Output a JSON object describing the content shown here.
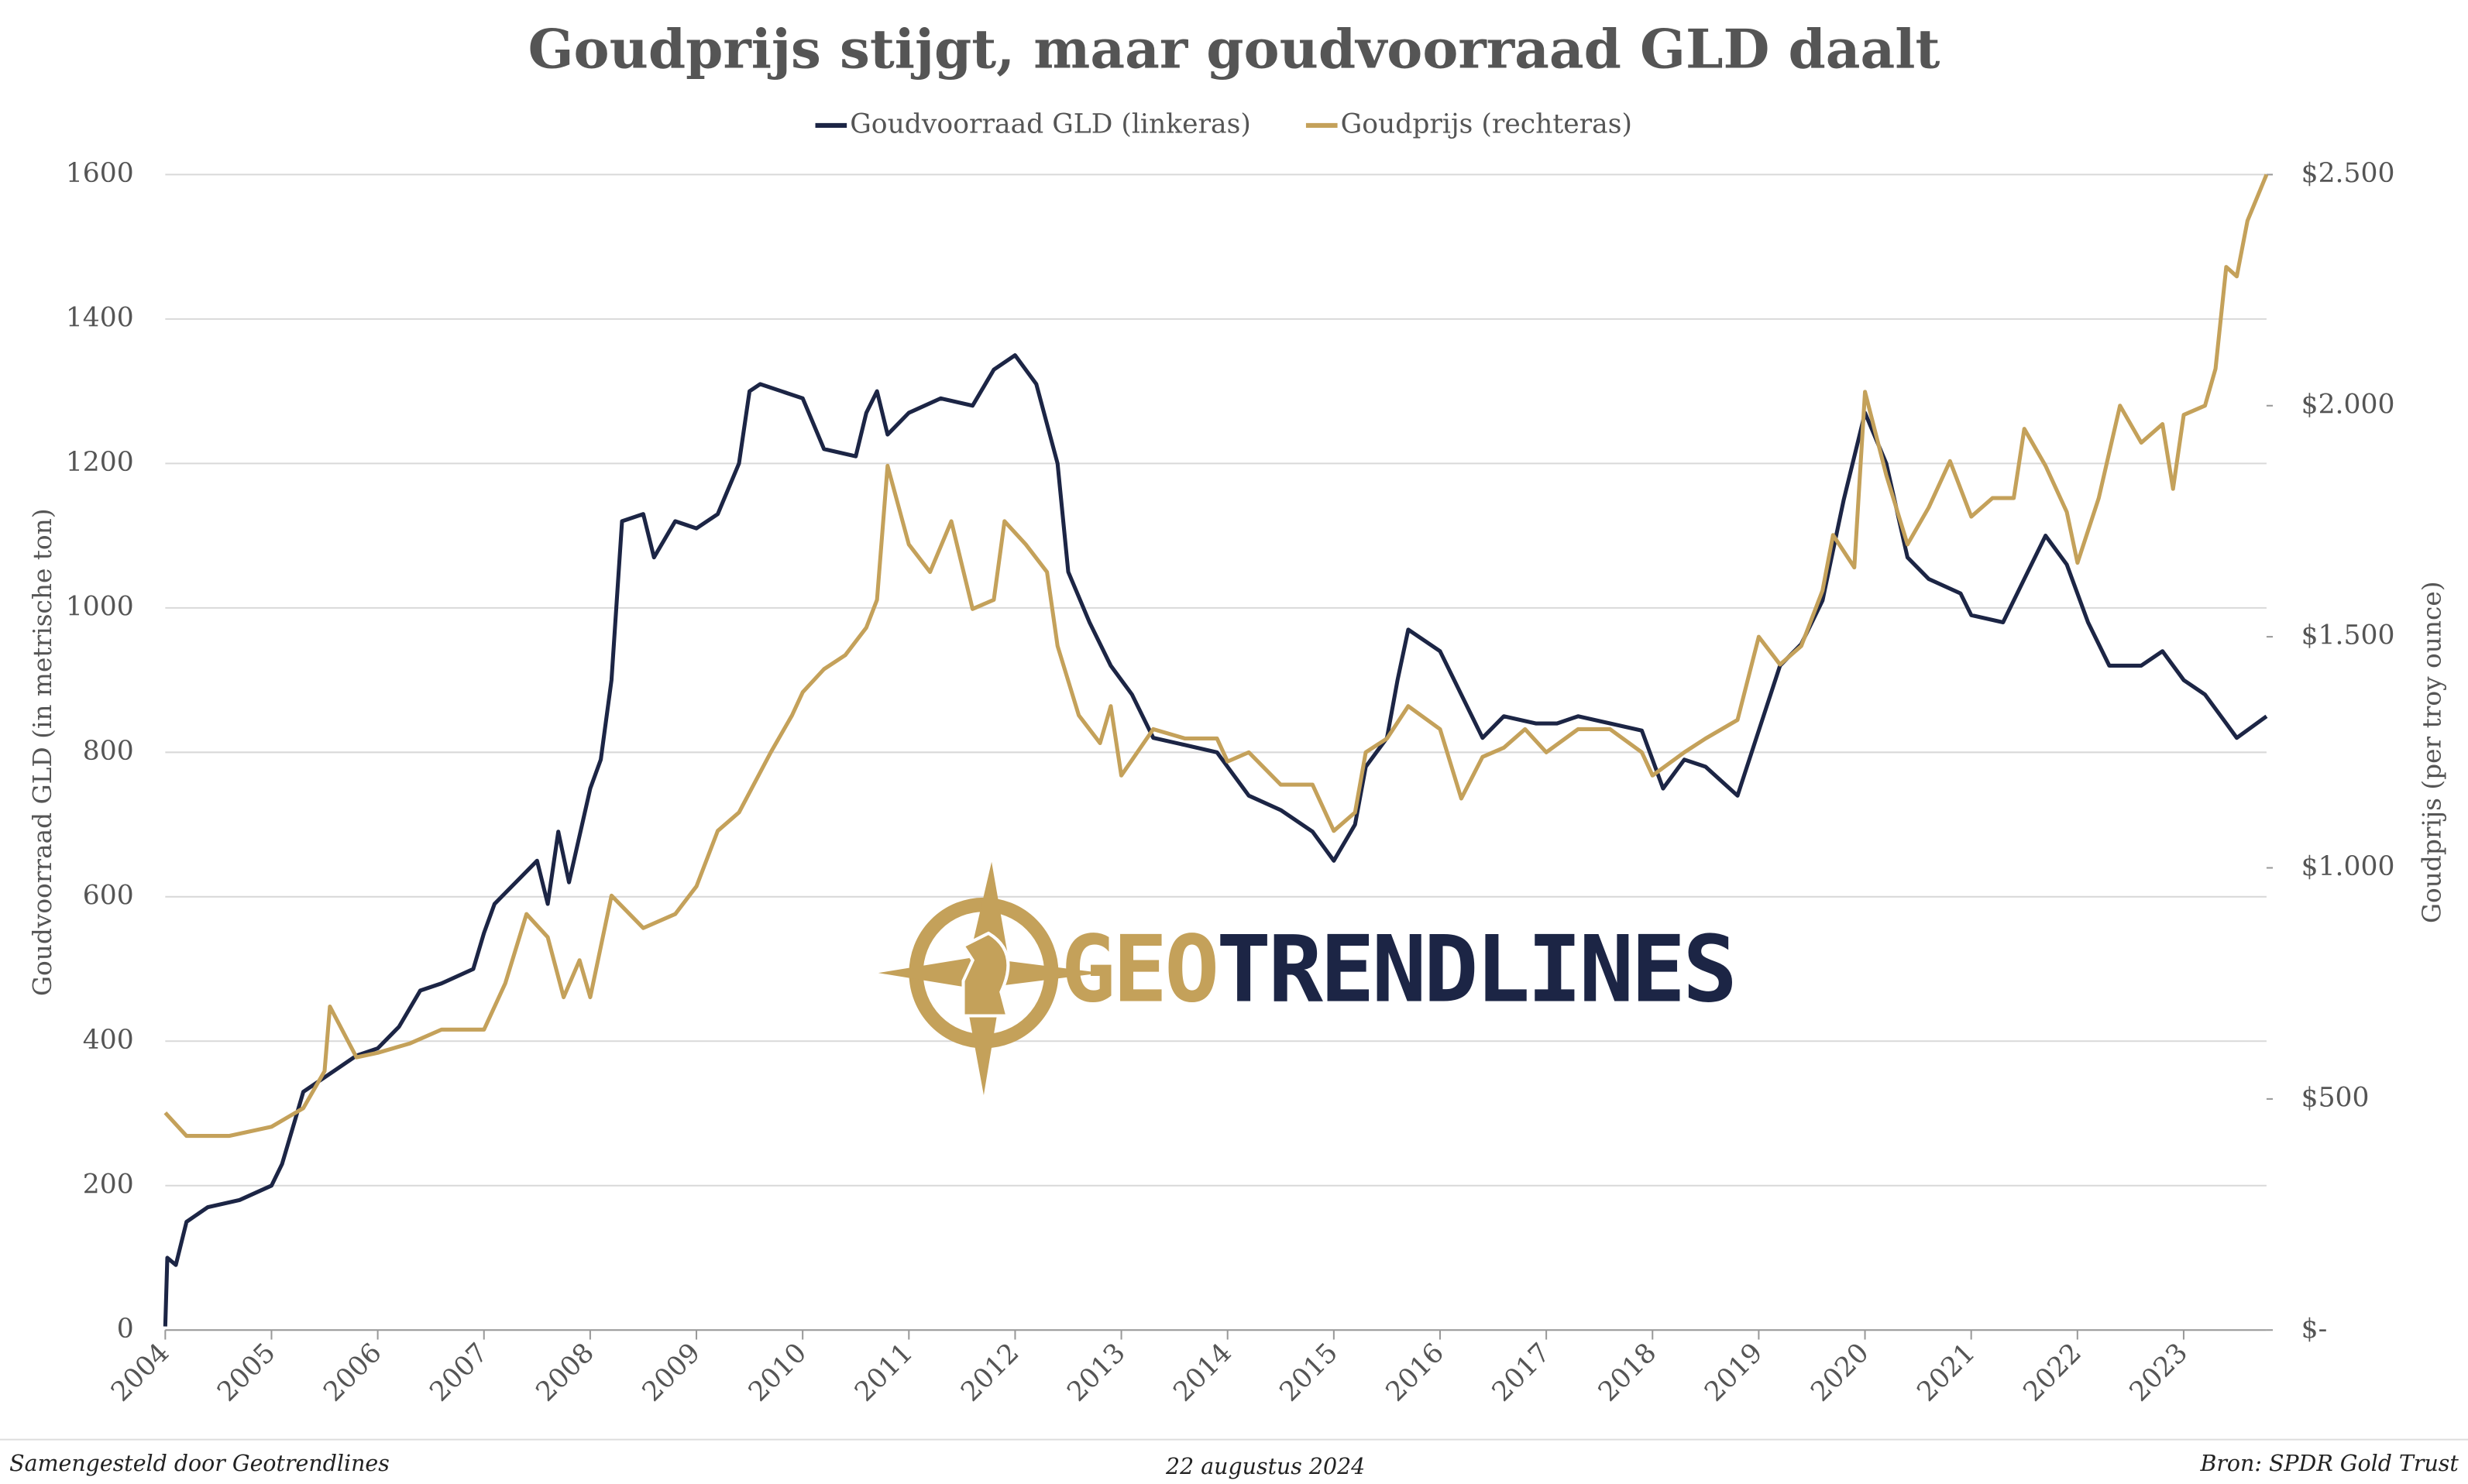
{
  "chart_data": {
    "type": "line",
    "title": "Goudprijs stijgt, maar goudvoorraad GLD daalt",
    "y_label": "Goudvoorraad GLD (in metrische ton)",
    "y2_label": "Goudprijs (per troy ounce)",
    "xlim": [
      2004,
      2023.78
    ],
    "xticks": [
      2004,
      2005,
      2006,
      2007,
      2008,
      2009,
      2010,
      2011,
      2012,
      2013,
      2014,
      2015,
      2016,
      2017,
      2018,
      2019,
      2020,
      2021,
      2022,
      2023
    ],
    "ylim": [
      0,
      1600
    ],
    "yticks": [
      0,
      200,
      400,
      600,
      800,
      1000,
      1200,
      1400,
      1600
    ],
    "y2lim": [
      0,
      2500
    ],
    "y2ticks": [
      {
        "value": 0,
        "label": "$-"
      },
      {
        "value": 500,
        "label": "$500"
      },
      {
        "value": 1000,
        "label": "$1.000"
      },
      {
        "value": 1500,
        "label": "$1.500"
      },
      {
        "value": 2000,
        "label": "$2.000"
      },
      {
        "value": 2500,
        "label": "$2.500"
      }
    ],
    "grid": true,
    "legend": "top",
    "series": [
      {
        "name": "Goudvoorraad GLD (linkeras)",
        "color": "#1c2545",
        "x": [
          2004.0,
          2004.02,
          2004.1,
          2004.2,
          2004.4,
          2004.7,
          2005.0,
          2005.1,
          2005.2,
          2005.3,
          2005.6,
          2005.8,
          2006.0,
          2006.2,
          2006.4,
          2006.6,
          2006.9,
          2007.0,
          2007.1,
          2007.3,
          2007.5,
          2007.6,
          2007.7,
          2007.8,
          2008.0,
          2008.1,
          2008.2,
          2008.3,
          2008.5,
          2008.6,
          2008.8,
          2009.0,
          2009.2,
          2009.4,
          2009.5,
          2009.6,
          2009.8,
          2010.0,
          2010.2,
          2010.5,
          2010.6,
          2010.7,
          2010.8,
          2011.0,
          2011.3,
          2011.6,
          2011.8,
          2012.0,
          2012.2,
          2012.4,
          2012.5,
          2012.7,
          2012.9,
          2013.1,
          2013.3,
          2013.6,
          2013.9,
          2014.0,
          2014.2,
          2014.5,
          2014.8,
          2015.0,
          2015.2,
          2015.3,
          2015.5,
          2015.6,
          2015.7,
          2016.0,
          2016.2,
          2016.4,
          2016.6,
          2016.9,
          2017.1,
          2017.3,
          2017.6,
          2017.9,
          2018.0,
          2018.1,
          2018.3,
          2018.5,
          2018.8,
          2019.0,
          2019.2,
          2019.4,
          2019.6,
          2019.8,
          2020.0,
          2020.2,
          2020.4,
          2020.6,
          2020.9,
          2021.0,
          2021.3,
          2021.5,
          2021.7,
          2021.9,
          2022.1,
          2022.3,
          2022.6,
          2022.8,
          2023.0,
          2023.2,
          2023.4,
          2023.5,
          2023.78
        ],
        "values": [
          5,
          100,
          90,
          150,
          170,
          180,
          200,
          230,
          280,
          330,
          360,
          380,
          390,
          420,
          470,
          480,
          500,
          550,
          590,
          620,
          650,
          590,
          690,
          620,
          750,
          790,
          900,
          1120,
          1130,
          1070,
          1120,
          1110,
          1130,
          1200,
          1300,
          1310,
          1300,
          1290,
          1220,
          1210,
          1270,
          1300,
          1240,
          1270,
          1290,
          1280,
          1330,
          1350,
          1310,
          1200,
          1050,
          980,
          920,
          880,
          820,
          810,
          800,
          780,
          740,
          720,
          690,
          650,
          700,
          780,
          820,
          900,
          970,
          940,
          880,
          820,
          850,
          840,
          840,
          850,
          840,
          830,
          790,
          750,
          790,
          780,
          740,
          830,
          920,
          950,
          1010,
          1150,
          1270,
          1200,
          1070,
          1040,
          1020,
          990,
          980,
          1040,
          1100,
          1060,
          980,
          920,
          920,
          940,
          900,
          880,
          840,
          820,
          850
        ]
      },
      {
        "name": "Goudprijs (rechteras)",
        "color": "#c4a15a",
        "axis": "y2",
        "x": [
          2004.0,
          2004.2,
          2004.6,
          2005.0,
          2005.3,
          2005.5,
          2005.55,
          2005.8,
          2006.0,
          2006.3,
          2006.6,
          2007.0,
          2007.2,
          2007.4,
          2007.6,
          2007.75,
          2007.9,
          2008.0,
          2008.2,
          2008.5,
          2008.8,
          2009.0,
          2009.2,
          2009.4,
          2009.7,
          2009.9,
          2010.0,
          2010.2,
          2010.4,
          2010.6,
          2010.7,
          2010.8,
          2011.0,
          2011.2,
          2011.4,
          2011.6,
          2011.8,
          2011.9,
          2012.1,
          2012.3,
          2012.4,
          2012.6,
          2012.8,
          2012.9,
          2013.0,
          2013.3,
          2013.6,
          2013.9,
          2014.0,
          2014.2,
          2014.5,
          2014.8,
          2015.0,
          2015.2,
          2015.3,
          2015.5,
          2015.7,
          2016.0,
          2016.2,
          2016.4,
          2016.6,
          2016.8,
          2017.0,
          2017.3,
          2017.6,
          2017.9,
          2018.0,
          2018.3,
          2018.5,
          2018.8,
          2019.0,
          2019.2,
          2019.4,
          2019.6,
          2019.7,
          2019.9,
          2020.0,
          2020.2,
          2020.4,
          2020.6,
          2020.8,
          2021.0,
          2021.2,
          2021.4,
          2021.5,
          2021.7,
          2021.9,
          2022.0,
          2022.2,
          2022.4,
          2022.6,
          2022.8,
          2022.9,
          2023.0,
          2023.2,
          2023.3,
          2023.4,
          2023.5,
          2023.6,
          2023.78
        ],
        "values": [
          470,
          420,
          420,
          440,
          480,
          560,
          700,
          590,
          600,
          620,
          650,
          650,
          750,
          900,
          850,
          720,
          800,
          720,
          940,
          870,
          900,
          960,
          1080,
          1120,
          1250,
          1330,
          1380,
          1430,
          1460,
          1520,
          1580,
          1870,
          1700,
          1640,
          1750,
          1560,
          1580,
          1750,
          1700,
          1640,
          1480,
          1330,
          1270,
          1350,
          1200,
          1300,
          1280,
          1280,
          1230,
          1250,
          1180,
          1180,
          1080,
          1120,
          1250,
          1280,
          1350,
          1300,
          1150,
          1240,
          1260,
          1300,
          1250,
          1300,
          1300,
          1250,
          1200,
          1250,
          1280,
          1320,
          1500,
          1440,
          1480,
          1600,
          1720,
          1650,
          2030,
          1850,
          1700,
          1780,
          1880,
          1760,
          1800,
          1800,
          1950,
          1870,
          1770,
          1660,
          1800,
          2000,
          1920,
          1960,
          1820,
          1980,
          2000,
          2080,
          2300,
          2280,
          2400,
          2500
        ]
      }
    ],
    "logo": [
      "GEO",
      "TRENDLINES"
    ],
    "footer_left": "Samengesteld door Geotrendlines",
    "footer_center": "22 augustus 2024",
    "footer_right": "Bron: SPDR Gold Trust"
  }
}
